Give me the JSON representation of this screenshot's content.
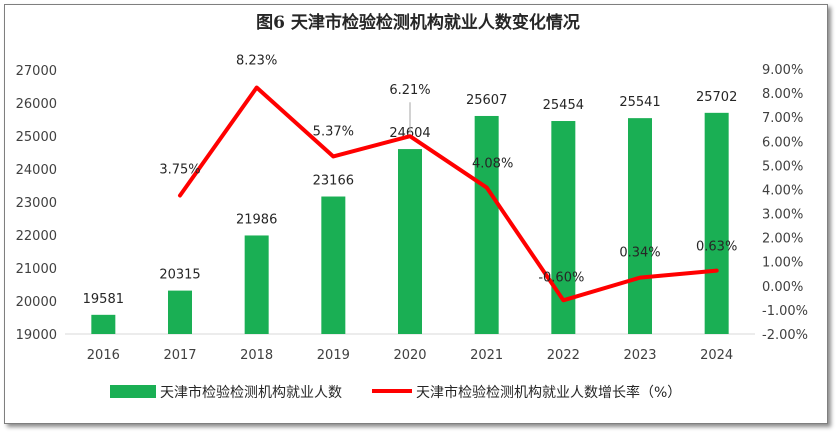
{
  "chart_data": {
    "type": "bar+line",
    "title": "图6  天津市检验检测机构就业人数变化情况",
    "categories": [
      "2016",
      "2017",
      "2018",
      "2019",
      "2020",
      "2021",
      "2022",
      "2023",
      "2024"
    ],
    "series": [
      {
        "name": "天津市检验检测机构就业人数",
        "type": "bar",
        "axis": "left",
        "color": "#1aaf54",
        "values": [
          19581,
          20315,
          21986,
          23166,
          24604,
          25607,
          25454,
          25541,
          25702
        ],
        "labels": [
          "19581",
          "20315",
          "21986",
          "23166",
          "24604",
          "25607",
          "25454",
          "25541",
          "25702"
        ]
      },
      {
        "name": "天津市检验检测机构就业人数增长率（%）",
        "type": "line",
        "axis": "right",
        "color": "#ff0000",
        "values": [
          null,
          3.75,
          8.23,
          5.37,
          6.21,
          4.08,
          -0.6,
          0.34,
          0.63
        ],
        "labels": [
          "",
          "3.75%",
          "8.23%",
          "5.37%",
          "6.21%",
          "4.08%",
          "-0.60%",
          "0.34%",
          "0.63%"
        ]
      }
    ],
    "y_left": {
      "range": [
        19000,
        27000
      ],
      "ticks": [
        "19000",
        "20000",
        "21000",
        "22000",
        "23000",
        "24000",
        "25000",
        "26000",
        "27000"
      ]
    },
    "y_right": {
      "range": [
        -2,
        9
      ],
      "ticks": [
        "-2.00%",
        "-1.00%",
        "0.00%",
        "1.00%",
        "2.00%",
        "3.00%",
        "4.00%",
        "5.00%",
        "6.00%",
        "7.00%",
        "8.00%",
        "9.00%"
      ]
    },
    "grid": false,
    "legend": "bottom"
  }
}
